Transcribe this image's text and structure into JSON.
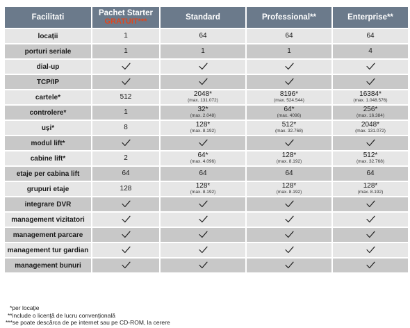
{
  "headers": {
    "feature": "Facilitati",
    "starter": "Pachet Starter",
    "starter_note": "GRATUIT***",
    "standard": "Standard",
    "professional": "Professional**",
    "enterprise": "Enterprise**"
  },
  "accent_color": "#e0461d",
  "header_color": "#6b7a8b",
  "rows": [
    {
      "feature": "locații",
      "cells": [
        {
          "main": "1"
        },
        {
          "main": "64"
        },
        {
          "main": "64"
        },
        {
          "main": "64"
        }
      ]
    },
    {
      "feature": "porturi seriale",
      "cells": [
        {
          "main": "1"
        },
        {
          "main": "1"
        },
        {
          "main": "1"
        },
        {
          "main": "4"
        }
      ]
    },
    {
      "feature": "dial-up",
      "cells": [
        {
          "check": true
        },
        {
          "check": true
        },
        {
          "check": true
        },
        {
          "check": true
        }
      ]
    },
    {
      "feature": "TCP/IP",
      "cells": [
        {
          "check": true
        },
        {
          "check": true
        },
        {
          "check": true
        },
        {
          "check": true
        }
      ]
    },
    {
      "feature": "cartele*",
      "cells": [
        {
          "main": "512"
        },
        {
          "main": "2048*",
          "sub": "(max. 131.072)"
        },
        {
          "main": "8196*",
          "sub": "(max. 524.544)"
        },
        {
          "main": "16384*",
          "sub": "(max. 1.048.576)"
        }
      ]
    },
    {
      "feature": "controlere*",
      "cells": [
        {
          "main": "1"
        },
        {
          "main": "32*",
          "sub": "(max. 2.048)"
        },
        {
          "main": "64*",
          "sub": "(max. 4096)"
        },
        {
          "main": "256*",
          "sub": "(max. 16.384)"
        }
      ]
    },
    {
      "feature": "uși*",
      "cells": [
        {
          "main": "8"
        },
        {
          "main": "128*",
          "sub": "(max. 8.192)"
        },
        {
          "main": "512*",
          "sub": "(max. 32.768)"
        },
        {
          "main": "2048*",
          "sub": "(max. 131.072)"
        }
      ]
    },
    {
      "feature": "modul lift*",
      "cells": [
        {
          "check": true
        },
        {
          "check": true
        },
        {
          "check": true
        },
        {
          "check": true
        }
      ]
    },
    {
      "feature": "cabine lift*",
      "cells": [
        {
          "main": "2"
        },
        {
          "main": "64*",
          "sub": "(max. 4.096)"
        },
        {
          "main": "128*",
          "sub": "(max. 8.192)"
        },
        {
          "main": "512*",
          "sub": "(max. 32.768)"
        }
      ]
    },
    {
      "feature": "etaje per cabina lift",
      "cells": [
        {
          "main": "64"
        },
        {
          "main": "64"
        },
        {
          "main": "64"
        },
        {
          "main": "64"
        }
      ]
    },
    {
      "feature": "grupuri etaje",
      "cells": [
        {
          "main": "128"
        },
        {
          "main": "128*",
          "sub": "(max. 8.192)"
        },
        {
          "main": "128*",
          "sub": "(max. 8.192)"
        },
        {
          "main": "128*",
          "sub": "(max. 8.192)"
        }
      ]
    },
    {
      "feature": "integrare DVR",
      "cells": [
        {
          "check": true
        },
        {
          "check": true
        },
        {
          "check": true
        },
        {
          "check": true
        }
      ]
    },
    {
      "feature": "management vizitatori",
      "cells": [
        {
          "check": true
        },
        {
          "check": true
        },
        {
          "check": true
        },
        {
          "check": true
        }
      ]
    },
    {
      "feature": "management parcare",
      "cells": [
        {
          "check": true
        },
        {
          "check": true
        },
        {
          "check": true
        },
        {
          "check": true
        }
      ]
    },
    {
      "feature": "management tur gardian",
      "cells": [
        {
          "check": true
        },
        {
          "check": true
        },
        {
          "check": true
        },
        {
          "check": true
        }
      ]
    },
    {
      "feature": "management bunuri",
      "cells": [
        {
          "check": true
        },
        {
          "check": true
        },
        {
          "check": true
        },
        {
          "check": true
        }
      ]
    }
  ],
  "footnotes": [
    "*per locaţie",
    "**include o licenţă de lucru convenţională",
    "***se poate descărca de pe internet sau pe CD-ROM, la cerere"
  ]
}
